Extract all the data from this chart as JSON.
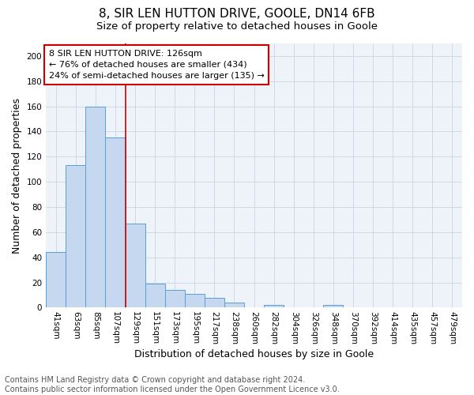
{
  "title": "8, SIR LEN HUTTON DRIVE, GOOLE, DN14 6FB",
  "subtitle": "Size of property relative to detached houses in Goole",
  "xlabel": "Distribution of detached houses by size in Goole",
  "ylabel": "Number of detached properties",
  "footer_line1": "Contains HM Land Registry data © Crown copyright and database right 2024.",
  "footer_line2": "Contains public sector information licensed under the Open Government Licence v3.0.",
  "categories": [
    "41sqm",
    "63sqm",
    "85sqm",
    "107sqm",
    "129sqm",
    "151sqm",
    "173sqm",
    "195sqm",
    "217sqm",
    "238sqm",
    "260sqm",
    "282sqm",
    "304sqm",
    "326sqm",
    "348sqm",
    "370sqm",
    "392sqm",
    "414sqm",
    "435sqm",
    "457sqm",
    "479sqm"
  ],
  "values": [
    44,
    113,
    160,
    135,
    67,
    19,
    14,
    11,
    8,
    4,
    0,
    2,
    0,
    0,
    2,
    0,
    0,
    0,
    0,
    0,
    0
  ],
  "bar_color": "#c5d8f0",
  "bar_edge_color": "#5a9fd4",
  "grid_color": "#d0d8e8",
  "annotation_box_color": "#ffffff",
  "annotation_border_color": "#cc0000",
  "red_line_x": 3.5,
  "annotation_text_line1": "8 SIR LEN HUTTON DRIVE: 126sqm",
  "annotation_text_line2": "← 76% of detached houses are smaller (434)",
  "annotation_text_line3": "24% of semi-detached houses are larger (135) →",
  "ylim": [
    0,
    210
  ],
  "yticks": [
    0,
    20,
    40,
    60,
    80,
    100,
    120,
    140,
    160,
    180,
    200
  ],
  "background_color": "#eef2f9",
  "title_fontsize": 11,
  "subtitle_fontsize": 9.5,
  "annotation_fontsize": 8,
  "axis_fontsize": 7.5,
  "ylabel_fontsize": 9,
  "xlabel_fontsize": 9,
  "footer_fontsize": 7
}
